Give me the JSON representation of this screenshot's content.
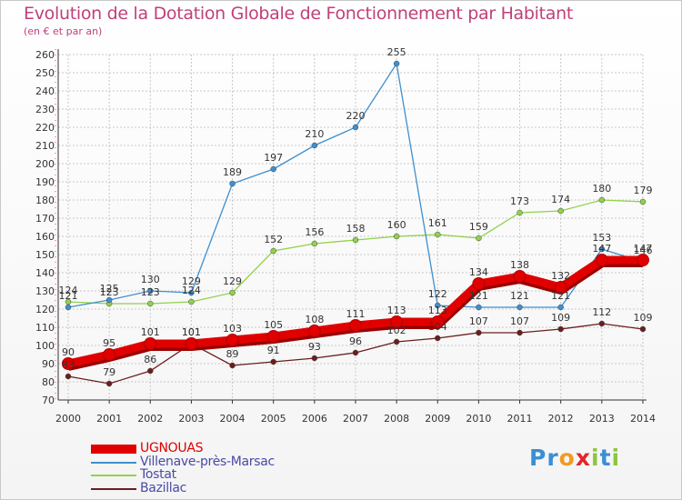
{
  "title": "Evolution de la Dotation Globale de Fonctionnement par Habitant",
  "subtitle": "(en € et par an)",
  "logo": {
    "p": "Pr",
    "o": "o",
    "x": "x",
    "i": "i",
    "t": "t",
    "i2": "i"
  },
  "colors": {
    "title": "#c0407a",
    "grid": "#c8c8c8",
    "axis": "#333333"
  },
  "chart_data": {
    "type": "line",
    "title": "Evolution de la Dotation Globale de Fonctionnement par Habitant",
    "subtitle": "(en € et par an)",
    "xlabel": "",
    "ylabel": "",
    "ylim": [
      70,
      260
    ],
    "ystep": 10,
    "grid": true,
    "legend_position": "bottom-left",
    "categories": [
      "2000",
      "2001",
      "2002",
      "2003",
      "2004",
      "2005",
      "2006",
      "2007",
      "2008",
      "2009",
      "2010",
      "2011",
      "2012",
      "2013",
      "2014"
    ],
    "series": [
      {
        "name": "UGNOUAS",
        "color": "#e00000",
        "values": [
          90,
          95,
          101,
          101,
          103,
          105,
          108,
          111,
          113,
          113,
          134,
          138,
          132,
          147,
          147
        ]
      },
      {
        "name": "Villenave-près-Marsac",
        "color": "#3f8fcf",
        "values": [
          121,
          125,
          130,
          129,
          189,
          197,
          210,
          220,
          255,
          122,
          121,
          121,
          121,
          153,
          146
        ]
      },
      {
        "name": "Tostat",
        "color": "#8fd24a",
        "values": [
          124,
          123,
          123,
          124,
          129,
          152,
          156,
          158,
          160,
          161,
          159,
          173,
          174,
          180,
          179
        ]
      },
      {
        "name": "Bazillac",
        "color": "#6b1e1e",
        "values": [
          83,
          79,
          86,
          101,
          89,
          91,
          93,
          96,
          102,
          104,
          107,
          107,
          109,
          112,
          109
        ]
      }
    ]
  }
}
